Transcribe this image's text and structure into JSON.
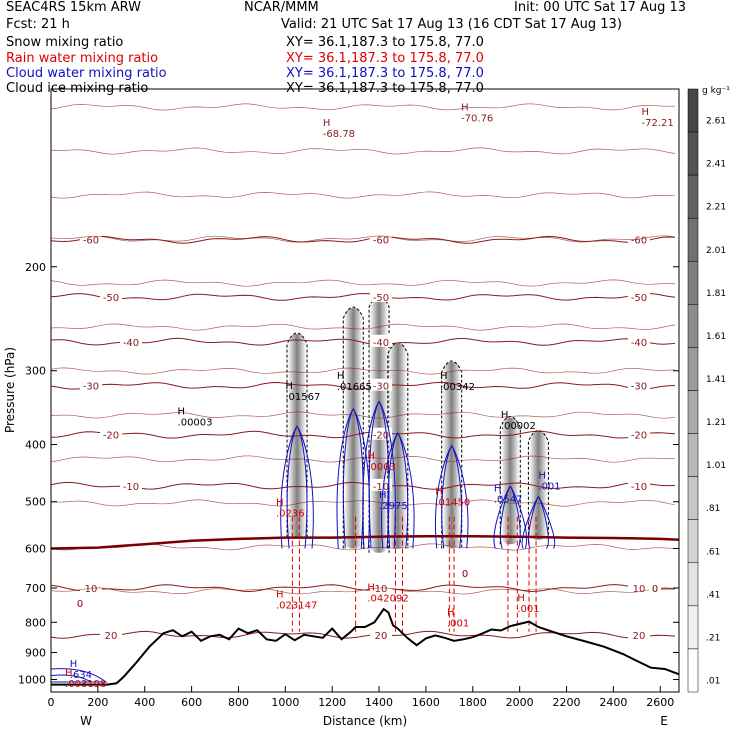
{
  "header": {
    "model": "SEAC4RS 15km ARW",
    "forecast": "Fcst:    21 h",
    "center": "NCAR/MMM",
    "init": "Init: 00 UTC Sat 17 Aug 13",
    "valid": "Valid: 21 UTC Sat 17 Aug 13 (16 CDT Sat 17 Aug 13)"
  },
  "fields": [
    {
      "name": "Snow mixing ratio",
      "xy": "XY=   36.1,187.3 to 175.8, 77.0",
      "color": "#000000"
    },
    {
      "name": "Rain water mixing ratio",
      "xy": "XY=   36.1,187.3 to 175.8, 77.0",
      "color": "#e00000"
    },
    {
      "name": "Cloud water mixing ratio",
      "xy": "XY=   36.1,187.3 to 175.8, 77.0",
      "color": "#1010c0"
    },
    {
      "name": "Cloud ice mixing ratio",
      "xy": "XY=   36.1,187.3 to 175.8, 77.0",
      "color": "#000000"
    }
  ],
  "colorbar": {
    "unit": "g kg⁻¹",
    "ticks": [
      "2.61",
      "2.41",
      "2.21",
      "2.01",
      "1.81",
      "1.61",
      "1.41",
      "1.21",
      "1.01",
      ".81",
      ".61",
      ".41",
      ".21",
      ".01"
    ]
  },
  "chart_data": {
    "type": "cross-section",
    "xlabel": "Distance (km)",
    "ylabel": "Pressure (hPa)",
    "xlim": [
      0,
      2680
    ],
    "ylim": [
      1050,
      100
    ],
    "y_scale": "log",
    "x_ticks": [
      0,
      200,
      400,
      600,
      800,
      1000,
      1200,
      1400,
      1600,
      1800,
      2000,
      2200,
      2400,
      2600
    ],
    "y_ticks": [
      200,
      300,
      400,
      500,
      600,
      700,
      800,
      900,
      1000
    ],
    "x_end_labels": [
      "W",
      "E"
    ],
    "terrain": {
      "x": [
        0,
        60,
        120,
        180,
        240,
        280,
        310,
        360,
        420,
        480,
        520,
        560,
        600,
        640,
        680,
        720,
        760,
        800,
        840,
        880,
        920,
        960,
        1000,
        1040,
        1080,
        1120,
        1160,
        1200,
        1240,
        1280,
        1300,
        1340,
        1380,
        1420,
        1440,
        1460,
        1480,
        1520,
        1560,
        1600,
        1640,
        1680,
        1720,
        1760,
        1800,
        1840,
        1880,
        1920,
        1960,
        2000,
        2040,
        2080,
        2120,
        2200,
        2280,
        2360,
        2440,
        2500,
        2560,
        2620,
        2680
      ],
      "p": [
        1020,
        1020,
        1020,
        1020,
        1020,
        1015,
        990,
        940,
        880,
        835,
        825,
        845,
        830,
        860,
        845,
        840,
        855,
        820,
        835,
        825,
        855,
        860,
        838,
        858,
        840,
        845,
        850,
        820,
        855,
        830,
        815,
        815,
        800,
        760,
        770,
        810,
        820,
        850,
        875,
        852,
        842,
        850,
        860,
        855,
        848,
        836,
        823,
        826,
        812,
        805,
        798,
        815,
        825,
        845,
        862,
        880,
        905,
        930,
        955,
        960,
        980
      ]
    },
    "freezing_level": {
      "label": "0",
      "x": [
        0,
        200,
        400,
        600,
        800,
        1000,
        1200,
        1400,
        1600,
        1800,
        2000,
        2200,
        2400,
        2600,
        2680
      ],
      "p": [
        600,
        598,
        590,
        582,
        578,
        575,
        575,
        573,
        572,
        572,
        573,
        575,
        576,
        578,
        580
      ]
    },
    "isotherms": [
      {
        "label": "-60",
        "p": 180
      },
      {
        "label": "-50",
        "p": 225
      },
      {
        "label": "-40",
        "p": 268
      },
      {
        "label": "-30",
        "p": 318
      },
      {
        "label": "-20",
        "p": 385
      },
      {
        "label": "-10",
        "p": 470
      },
      {
        "label": "10",
        "p": 700
      },
      {
        "label": "20",
        "p": 840
      }
    ],
    "extrema_labels": [
      {
        "text": "-68.78",
        "x": 1160,
        "p": 120,
        "color": "#8b1a1a"
      },
      {
        "text": "-70.76",
        "x": 1750,
        "p": 113,
        "color": "#8b1a1a"
      },
      {
        "text": "-72.21",
        "x": 2520,
        "p": 115,
        "color": "#8b1a1a"
      },
      {
        "text": ".00003",
        "x": 540,
        "p": 370,
        "color": "#000000"
      },
      {
        "text": ".01567",
        "x": 1000,
        "p": 335,
        "color": "#000000"
      },
      {
        "text": ".01665",
        "x": 1220,
        "p": 322,
        "color": "#000000"
      },
      {
        "text": ".00342",
        "x": 1660,
        "p": 322,
        "color": "#000000"
      },
      {
        "text": ".00002",
        "x": 1920,
        "p": 375,
        "color": "#000000"
      },
      {
        "text": ".0003",
        "x": 1350,
        "p": 440,
        "color": "#d00000"
      },
      {
        "text": ".0236",
        "x": 960,
        "p": 528,
        "color": "#d00000"
      },
      {
        "text": ".01450",
        "x": 1640,
        "p": 505,
        "color": "#d00000"
      },
      {
        "text": ".2975",
        "x": 1400,
        "p": 512,
        "color": "#1010c0"
      },
      {
        "text": ".0547",
        "x": 1890,
        "p": 500,
        "color": "#1010c0"
      },
      {
        "text": ".001",
        "x": 2080,
        "p": 475,
        "color": "#1010c0"
      },
      {
        "text": ".023147",
        "x": 960,
        "p": 755,
        "color": "#d00000"
      },
      {
        "text": ".042092",
        "x": 1350,
        "p": 735,
        "color": "#d00000"
      },
      {
        "text": ".001",
        "x": 1690,
        "p": 810,
        "color": "#d00000"
      },
      {
        "text": ".001",
        "x": 1990,
        "p": 765,
        "color": "#d00000"
      },
      {
        "text": ".634",
        "x": 80,
        "p": 990,
        "color": "#1010c0"
      },
      {
        "text": ".003198",
        "x": 60,
        "p": 1025,
        "color": "#d00000"
      }
    ],
    "convective_columns": [
      {
        "x": 1050,
        "top": 260,
        "bottom": 575
      },
      {
        "x": 1290,
        "top": 235,
        "bottom": 600
      },
      {
        "x": 1400,
        "top": 225,
        "bottom": 610
      },
      {
        "x": 1480,
        "top": 270,
        "bottom": 600
      },
      {
        "x": 1710,
        "top": 290,
        "bottom": 600
      },
      {
        "x": 1960,
        "top": 360,
        "bottom": 590
      },
      {
        "x": 2080,
        "top": 380,
        "bottom": 580
      }
    ],
    "rain_shafts": [
      1030,
      1060,
      1300,
      1470,
      1500,
      1700,
      1720,
      1950,
      1990,
      2040,
      2070
    ]
  }
}
